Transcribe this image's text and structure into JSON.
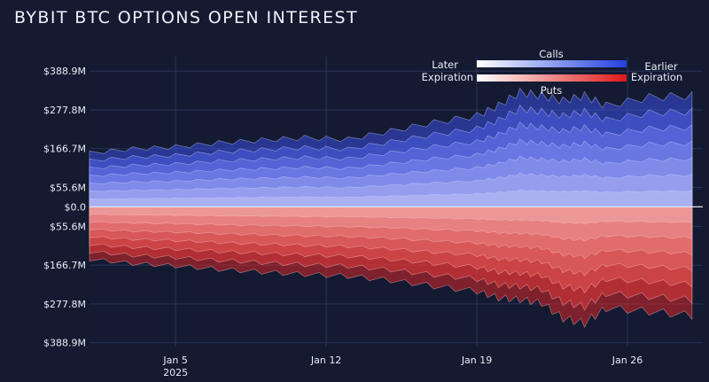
{
  "title": "BYBIT BTC OPTIONS OPEN INTEREST",
  "legend": {
    "calls_label": "Calls",
    "puts_label": "Puts",
    "later_label": "Later",
    "expiration_left_label": "Expiration",
    "earlier_label": "Earlier",
    "expiration_right_label": "Expiration"
  },
  "colors": {
    "background": "#141b30",
    "calls_dark": "#2340e0",
    "calls_light": "#ffffff",
    "puts_dark": "#e01818",
    "puts_light": "#ffffff"
  },
  "chart_data": {
    "type": "area",
    "title": "BYBIT BTC OPTIONS OPEN INTEREST",
    "xlabel": "",
    "ylabel": "",
    "x_ticks": [
      {
        "date": "2025-01-05",
        "label": "Jan 5",
        "sublabel": "2025"
      },
      {
        "date": "2025-01-12",
        "label": "Jan 12",
        "sublabel": ""
      },
      {
        "date": "2025-01-19",
        "label": "Jan 19",
        "sublabel": ""
      },
      {
        "date": "2025-01-26",
        "label": "Jan 26",
        "sublabel": ""
      }
    ],
    "y_ticks": [
      {
        "value": 388.9,
        "label": "$388.9M"
      },
      {
        "value": 277.8,
        "label": "$277.8M"
      },
      {
        "value": 166.7,
        "label": "$166.7M"
      },
      {
        "value": 55.6,
        "label": "$55.6M"
      },
      {
        "value": 0,
        "label": "$0.0"
      },
      {
        "value": -55.6,
        "label": "$55.6M"
      },
      {
        "value": -166.7,
        "label": "$166.7M"
      },
      {
        "value": -277.8,
        "label": "$277.8M"
      },
      {
        "value": -388.9,
        "label": "$388.9M"
      }
    ],
    "ylim": [
      -400,
      430
    ],
    "xlim": [
      "2025-01-01",
      "2025-01-29 12:00"
    ],
    "series": [
      {
        "side": "calls",
        "dates": [
          "2025-01-01",
          "2025-01-03",
          "2025-01-05",
          "2025-01-07",
          "2025-01-09",
          "2025-01-11",
          "2025-01-13",
          "2025-01-15",
          "2025-01-17",
          "2025-01-19",
          "2025-01-20",
          "2025-01-21",
          "2025-01-22",
          "2025-01-23",
          "2025-01-24",
          "2025-01-25",
          "2025-01-27",
          "2025-01-29"
        ],
        "total_values": [
          160,
          172,
          178,
          190,
          198,
          205,
          200,
          225,
          250,
          270,
          300,
          340,
          330,
          315,
          330,
          300,
          325,
          330
        ]
      },
      {
        "side": "puts",
        "dates": [
          "2025-01-01",
          "2025-01-03",
          "2025-01-05",
          "2025-01-07",
          "2025-01-09",
          "2025-01-11",
          "2025-01-13",
          "2025-01-15",
          "2025-01-17",
          "2025-01-19",
          "2025-01-20",
          "2025-01-21",
          "2025-01-22",
          "2025-01-23",
          "2025-01-24",
          "2025-01-25",
          "2025-01-27",
          "2025-01-29"
        ],
        "total_values": [
          -155,
          -168,
          -175,
          -185,
          -193,
          -200,
          -205,
          -218,
          -235,
          -250,
          -270,
          -275,
          -285,
          -330,
          -345,
          -300,
          -310,
          -322
        ]
      }
    ]
  }
}
